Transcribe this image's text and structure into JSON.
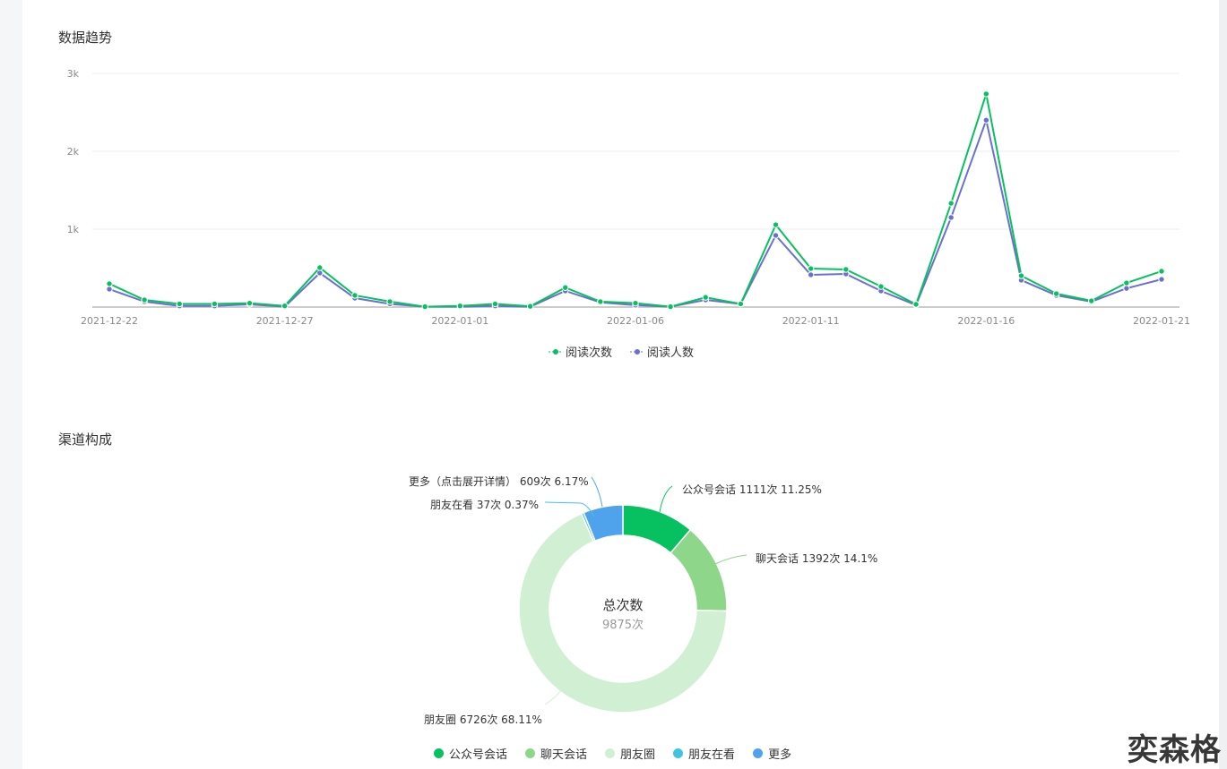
{
  "trend": {
    "title": "数据趋势",
    "chart_data": {
      "type": "line",
      "x": [
        "2021-12-22",
        "2021-12-23",
        "2021-12-24",
        "2021-12-25",
        "2021-12-26",
        "2021-12-27",
        "2021-12-28",
        "2021-12-29",
        "2021-12-30",
        "2021-12-31",
        "2022-01-01",
        "2022-01-02",
        "2022-01-03",
        "2022-01-04",
        "2022-01-05",
        "2022-01-06",
        "2022-01-07",
        "2022-01-08",
        "2022-01-09",
        "2022-01-10",
        "2022-01-11",
        "2022-01-12",
        "2022-01-13",
        "2022-01-14",
        "2022-01-15",
        "2022-01-16",
        "2022-01-17",
        "2022-01-18",
        "2022-01-19",
        "2022-01-20",
        "2022-01-21"
      ],
      "x_tick_labels": [
        "2021-12-22",
        "2021-12-27",
        "2022-01-01",
        "2022-01-06",
        "2022-01-11",
        "2022-01-16",
        "2022-01-21"
      ],
      "y_tick_labels": [
        "1k",
        "2k",
        "3k"
      ],
      "ylim": [
        0,
        3000
      ],
      "grid": true,
      "legend_position": "bottom-center",
      "series": [
        {
          "name": "阅读次数",
          "color": "#07c160",
          "values": [
            300,
            92,
            40,
            40,
            50,
            15,
            506,
            150,
            70,
            5,
            15,
            40,
            10,
            250,
            70,
            50,
            5,
            125,
            40,
            1057,
            494,
            483,
            264,
            35,
            1333,
            2736,
            402,
            172,
            80,
            310,
            460
          ]
        },
        {
          "name": "阅读人数",
          "color": "#6b6fcf",
          "values": [
            230,
            70,
            15,
            15,
            35,
            5,
            437,
            115,
            40,
            5,
            5,
            15,
            5,
            207,
            60,
            25,
            5,
            92,
            40,
            920,
            414,
            425,
            207,
            25,
            1150,
            2400,
            345,
            150,
            70,
            240,
            356
          ]
        }
      ]
    }
  },
  "channel": {
    "title": "渠道构成",
    "center_title": "总次数",
    "center_value": "9875次",
    "chart_data": {
      "type": "pie",
      "donut": true,
      "slices": [
        {
          "name": "公众号会话",
          "value": 1111,
          "percent": "11.25%",
          "label": "公众号会话 1111次 11.25%",
          "color": "#07c160"
        },
        {
          "name": "聊天会话",
          "value": 1392,
          "percent": "14.1%",
          "label": "聊天会话 1392次 14.1%",
          "color": "#8ed68a"
        },
        {
          "name": "朋友圈",
          "value": 6726,
          "percent": "68.11%",
          "label": "朋友圈 6726次 68.11%",
          "color": "#d1efd3"
        },
        {
          "name": "朋友在看",
          "value": 37,
          "percent": "0.37%",
          "label": "朋友在看 37次 0.37%",
          "color": "#40c4e0"
        },
        {
          "name": "更多",
          "value": 609,
          "percent": "6.17%",
          "label": "更多（点击展开详情） 609次 6.17%",
          "color": "#4fa3ec"
        }
      ]
    }
  },
  "watermark": "奕森格"
}
